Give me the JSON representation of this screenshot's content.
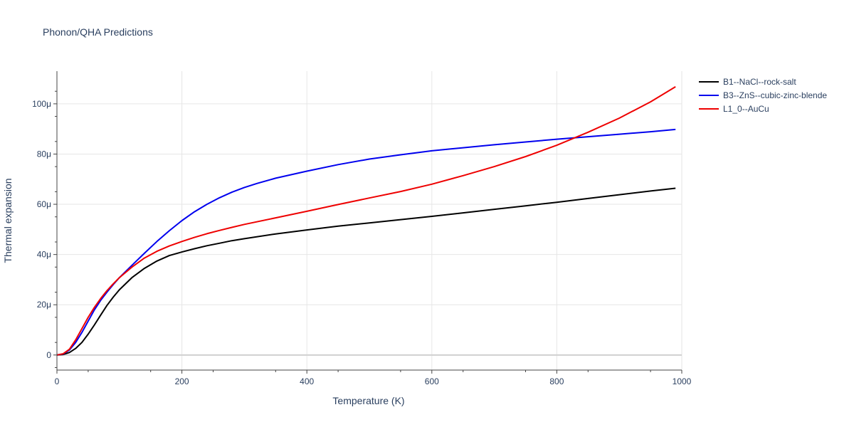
{
  "chart_data": {
    "type": "line",
    "title": "Phonon/QHA Predictions",
    "xlabel": "Temperature (K)",
    "ylabel": "Thermal expansion",
    "xlim": [
      0,
      1000
    ],
    "ylim": [
      -6e-06,
      0.000113
    ],
    "x_ticks": [
      {
        "value": 0,
        "label": "0"
      },
      {
        "value": 200,
        "label": "200"
      },
      {
        "value": 400,
        "label": "400"
      },
      {
        "value": 600,
        "label": "600"
      },
      {
        "value": 800,
        "label": "800"
      },
      {
        "value": 1000,
        "label": "1000"
      }
    ],
    "y_ticks": [
      {
        "value": 0,
        "label": "0"
      },
      {
        "value": 2e-05,
        "label": "20μ"
      },
      {
        "value": 4e-05,
        "label": "40μ"
      },
      {
        "value": 6e-05,
        "label": "60μ"
      },
      {
        "value": 8e-05,
        "label": "80μ"
      },
      {
        "value": 0.0001,
        "label": "100μ"
      }
    ],
    "grid": true,
    "legend_position": "top-right",
    "series": [
      {
        "name": "B1--NaCl--rock-salt",
        "color": "#000000",
        "x": [
          0,
          10,
          20,
          30,
          40,
          50,
          60,
          70,
          80,
          90,
          100,
          120,
          140,
          160,
          180,
          200,
          220,
          240,
          260,
          280,
          300,
          350,
          400,
          450,
          500,
          550,
          600,
          650,
          700,
          750,
          800,
          850,
          900,
          950,
          990
        ],
        "y": [
          0,
          2e-07,
          1e-06,
          2.6e-06,
          5e-06,
          8.3e-06,
          1.2e-05,
          1.59e-05,
          1.97e-05,
          2.3e-05,
          2.6e-05,
          3.08e-05,
          3.45e-05,
          3.74e-05,
          3.96e-05,
          4.1e-05,
          4.23e-05,
          4.35e-05,
          4.45e-05,
          4.55e-05,
          4.63e-05,
          4.82e-05,
          4.98e-05,
          5.13e-05,
          5.26e-05,
          5.39e-05,
          5.52e-05,
          5.66e-05,
          5.8e-05,
          5.94e-05,
          6.08e-05,
          6.23e-05,
          6.38e-05,
          6.53e-05,
          6.64e-05
        ]
      },
      {
        "name": "B3--ZnS--cubic-zinc-blende",
        "color": "#0000ee",
        "x": [
          0,
          10,
          20,
          30,
          40,
          50,
          60,
          70,
          80,
          90,
          100,
          120,
          140,
          160,
          180,
          200,
          220,
          240,
          260,
          280,
          300,
          320,
          350,
          400,
          450,
          500,
          550,
          600,
          650,
          700,
          750,
          800,
          850,
          900,
          950,
          990
        ],
        "y": [
          0,
          4e-07,
          2e-06,
          5e-06,
          9e-06,
          1.35e-05,
          1.8e-05,
          2.18e-05,
          2.5e-05,
          2.8e-05,
          3.08e-05,
          3.57e-05,
          4.05e-05,
          4.52e-05,
          4.95e-05,
          5.35e-05,
          5.7e-05,
          6e-05,
          6.26e-05,
          6.48e-05,
          6.67e-05,
          6.83e-05,
          7.04e-05,
          7.32e-05,
          7.58e-05,
          7.8e-05,
          7.97e-05,
          8.13e-05,
          8.25e-05,
          8.37e-05,
          8.48e-05,
          8.59e-05,
          8.69e-05,
          8.79e-05,
          8.89e-05,
          8.98e-05
        ]
      },
      {
        "name": "L1_0--AuCu",
        "color": "#ee0000",
        "x": [
          0,
          10,
          20,
          30,
          40,
          50,
          60,
          70,
          80,
          90,
          100,
          120,
          140,
          160,
          180,
          200,
          220,
          240,
          260,
          280,
          300,
          350,
          400,
          450,
          500,
          550,
          600,
          650,
          700,
          750,
          800,
          850,
          900,
          950,
          990
        ],
        "y": [
          0,
          5e-07,
          2.3e-06,
          6e-06,
          1.05e-05,
          1.5e-05,
          1.9e-05,
          2.25e-05,
          2.56e-05,
          2.83e-05,
          3.08e-05,
          3.5e-05,
          3.86e-05,
          4.13e-05,
          4.34e-05,
          4.52e-05,
          4.68e-05,
          4.83e-05,
          4.96e-05,
          5.08e-05,
          5.2e-05,
          5.46e-05,
          5.72e-05,
          5.99e-05,
          6.25e-05,
          6.51e-05,
          6.8e-05,
          7.14e-05,
          7.5e-05,
          7.9e-05,
          8.35e-05,
          8.87e-05,
          9.43e-05,
          0.0001008,
          0.0001068
        ]
      }
    ]
  }
}
